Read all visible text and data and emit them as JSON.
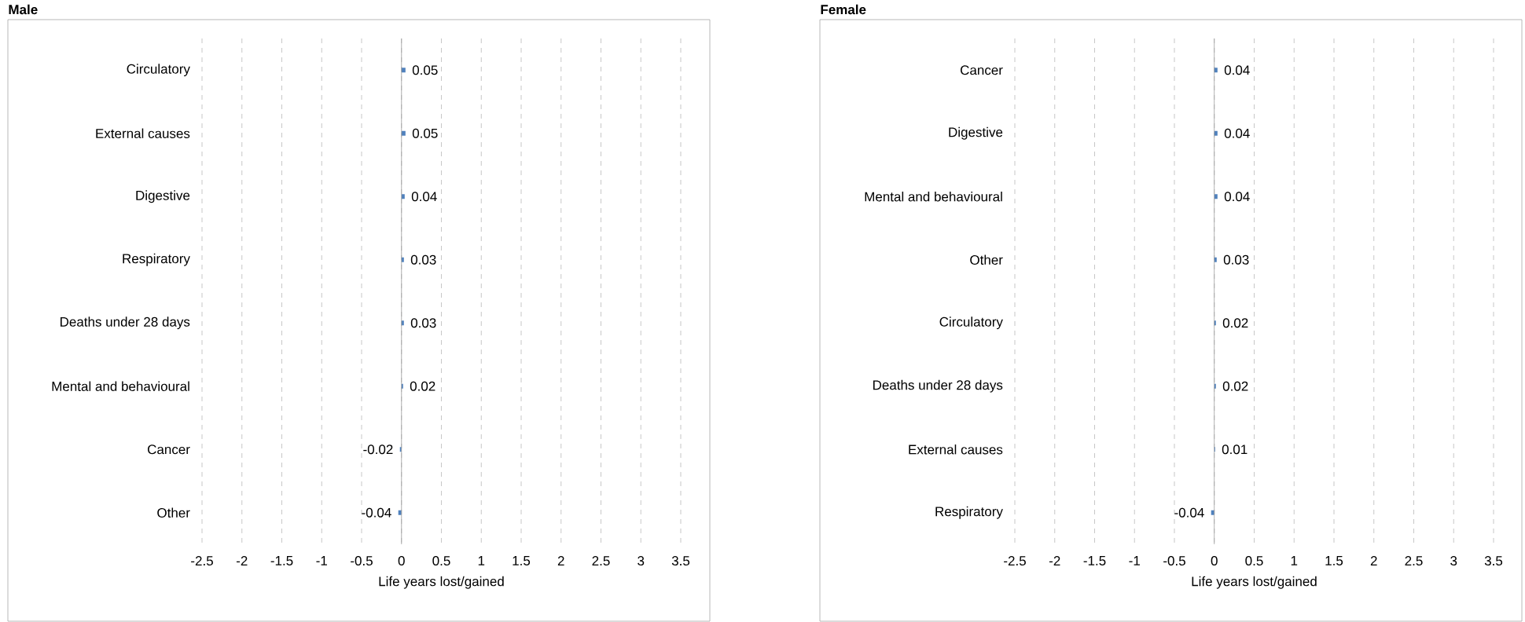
{
  "chart_data": [
    {
      "type": "bar",
      "orientation": "horizontal",
      "title": "Male",
      "xlabel": "Life years lost/gained",
      "categories": [
        "Circulatory",
        "External causes",
        "Digestive",
        "Respiratory",
        "Deaths under 28 days",
        "Mental and behavioural",
        "Cancer",
        "Other"
      ],
      "values": [
        0.05,
        0.05,
        0.04,
        0.03,
        0.03,
        0.02,
        -0.02,
        -0.04
      ],
      "color": "#4f81bd",
      "xlim": [
        -2.5,
        3.5
      ],
      "xticks": [
        -2.5,
        -2,
        -1.5,
        -1,
        -0.5,
        0,
        0.5,
        1,
        1.5,
        2,
        2.5,
        3,
        3.5
      ],
      "grid": "x",
      "data_labels": true
    },
    {
      "type": "bar",
      "orientation": "horizontal",
      "title": "Female",
      "xlabel": "Life years lost/gained",
      "categories": [
        "Cancer",
        "Digestive",
        "Mental and behavioural",
        "Other",
        "Circulatory",
        "Deaths under 28 days",
        "External causes",
        "Respiratory"
      ],
      "values": [
        0.04,
        0.04,
        0.04,
        0.03,
        0.02,
        0.02,
        0.01,
        -0.04
      ],
      "color": "#4f81bd",
      "xlim": [
        -2.5,
        3.5
      ],
      "xticks": [
        -2.5,
        -2,
        -1.5,
        -1,
        -0.5,
        0,
        0.5,
        1,
        1.5,
        2,
        2.5,
        3,
        3.5
      ],
      "grid": "x",
      "data_labels": true
    }
  ]
}
